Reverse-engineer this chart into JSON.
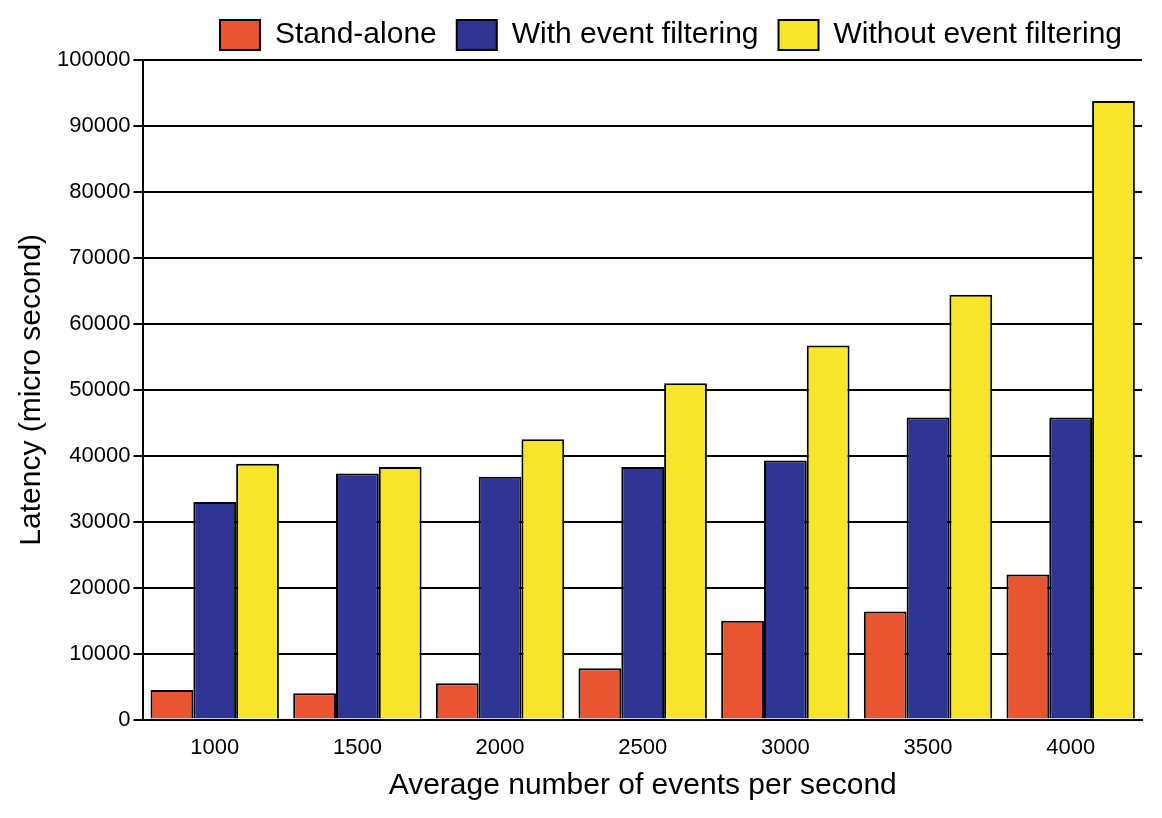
{
  "chart_data": {
    "type": "bar",
    "xlabel": "Average number of events per second",
    "ylabel": "Latency (micro second)",
    "categories": [
      "1000",
      "1500",
      "2000",
      "2500",
      "3000",
      "3500",
      "4000"
    ],
    "series": [
      {
        "name": "Stand-alone",
        "color": "#e8562f",
        "values": [
          4500,
          4000,
          5500,
          7800,
          15000,
          16400,
          22000
        ]
      },
      {
        "name": "With event filtering",
        "color": "#2e3592",
        "values": [
          33000,
          37300,
          36800,
          38300,
          39300,
          45800,
          45800
        ]
      },
      {
        "name": "Without event filtering",
        "color": "#f8e52a",
        "values": [
          38800,
          38300,
          42500,
          51000,
          56700,
          64400,
          93800
        ]
      }
    ],
    "ylim": [
      0,
      100000
    ],
    "yticks": [
      0,
      10000,
      20000,
      30000,
      40000,
      50000,
      60000,
      70000,
      80000,
      90000,
      100000
    ],
    "grid": "y",
    "legend": "top"
  }
}
